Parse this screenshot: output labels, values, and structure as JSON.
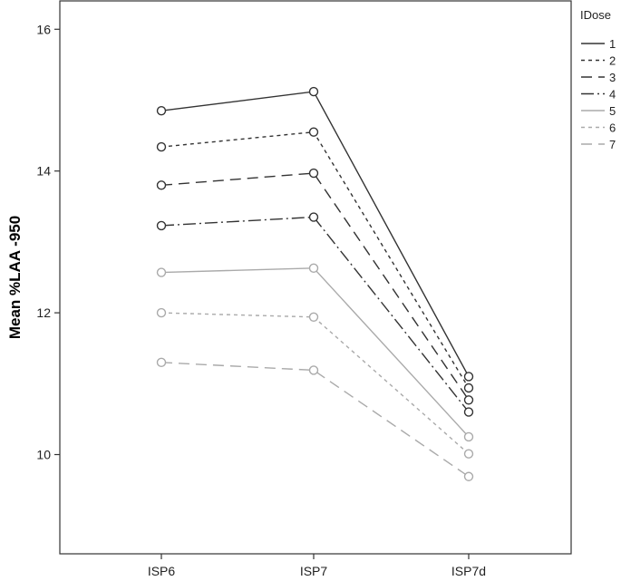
{
  "chart_data": {
    "type": "line",
    "categories": [
      "ISP6",
      "ISP7",
      "ISP7d"
    ],
    "ylabel": "Mean %LAA -950",
    "xlabel": "",
    "ylim": [
      8.6,
      16.4
    ],
    "yticks": [
      10,
      12,
      14,
      16
    ],
    "ytick_labels": [
      "10",
      "12",
      "14",
      "16"
    ],
    "grid": false,
    "legend": {
      "title": "IDose",
      "position": "right-top"
    },
    "series": [
      {
        "name": "1",
        "values": [
          14.85,
          15.12,
          11.1
        ],
        "color": "#333333",
        "dash": "solid"
      },
      {
        "name": "2",
        "values": [
          14.34,
          14.55,
          10.94
        ],
        "color": "#333333",
        "dash": "short-dash"
      },
      {
        "name": "3",
        "values": [
          13.8,
          13.97,
          10.77
        ],
        "color": "#333333",
        "dash": "long-dash"
      },
      {
        "name": "4",
        "values": [
          13.23,
          13.35,
          10.6
        ],
        "color": "#333333",
        "dash": "dash-dot"
      },
      {
        "name": "5",
        "values": [
          12.57,
          12.63,
          10.25
        ],
        "color": "#aaaaaa",
        "dash": "solid"
      },
      {
        "name": "6",
        "values": [
          12.0,
          11.94,
          10.01
        ],
        "color": "#aaaaaa",
        "dash": "short-dash"
      },
      {
        "name": "7",
        "values": [
          11.3,
          11.19,
          9.69
        ],
        "color": "#aaaaaa",
        "dash": "long-dash"
      }
    ]
  }
}
